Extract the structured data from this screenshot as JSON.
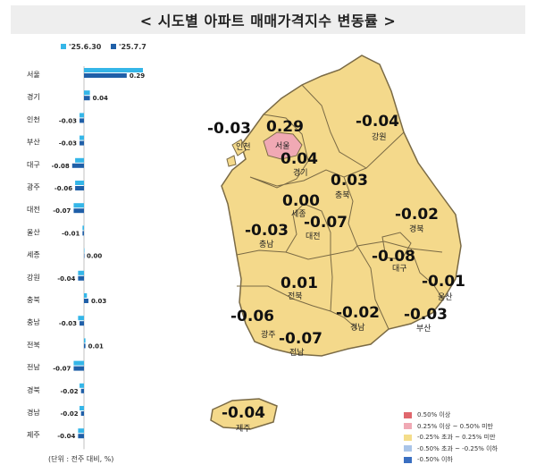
{
  "title": "< 시도별 아파트 매매가격지수 변동률 >",
  "unit_note": "(단위 : 전주 대비, %)",
  "legend_bar": [
    {
      "label": "'25.6.30",
      "color": "#35b6e8"
    },
    {
      "label": "'25.7.7",
      "color": "#1f5fa8"
    }
  ],
  "chart_data": {
    "type": "bar",
    "orientation": "horizontal",
    "categories": [
      "서울",
      "경기",
      "인천",
      "부산",
      "대구",
      "광주",
      "대전",
      "울산",
      "세종",
      "강원",
      "충북",
      "충남",
      "전북",
      "전남",
      "경북",
      "경남",
      "제주"
    ],
    "series": [
      {
        "name": "'25.6.30",
        "values": [
          0.4,
          0.04,
          -0.03,
          -0.03,
          -0.06,
          -0.06,
          -0.07,
          -0.01,
          0.0,
          -0.04,
          0.02,
          -0.04,
          0.01,
          -0.07,
          -0.03,
          -0.03,
          -0.04
        ]
      },
      {
        "name": "'25.7.7",
        "values": [
          0.29,
          0.04,
          -0.03,
          -0.03,
          -0.08,
          -0.06,
          -0.07,
          -0.01,
          0.0,
          -0.04,
          0.03,
          -0.03,
          0.01,
          -0.07,
          -0.02,
          -0.02,
          -0.04
        ]
      }
    ],
    "value_labels": [
      "0.29",
      "0.04",
      "-0.03",
      "-0.03",
      "-0.08",
      "-0.06",
      "-0.07",
      "-0.01",
      "0.00",
      "-0.04",
      "0.03",
      "-0.03",
      "0.01",
      "-0.07",
      "-0.02",
      "-0.02",
      "-0.04"
    ]
  },
  "map": {
    "regions": [
      {
        "name": "인천",
        "value": "-0.03"
      },
      {
        "name": "서울",
        "value": "0.29"
      },
      {
        "name": "경기",
        "value": "0.04"
      },
      {
        "name": "강원",
        "value": "-0.04"
      },
      {
        "name": "충북",
        "value": "0.03"
      },
      {
        "name": "세종",
        "value": "0.00"
      },
      {
        "name": "충남",
        "value": "-0.03"
      },
      {
        "name": "대전",
        "value": "-0.07"
      },
      {
        "name": "경북",
        "value": "-0.02"
      },
      {
        "name": "대구",
        "value": "-0.08"
      },
      {
        "name": "울산",
        "value": "-0.01"
      },
      {
        "name": "전북",
        "value": "0.01"
      },
      {
        "name": "경남",
        "value": "-0.02"
      },
      {
        "name": "부산",
        "value": "-0.03"
      },
      {
        "name": "광주",
        "value": "-0.06"
      },
      {
        "name": "전남",
        "value": "-0.07"
      },
      {
        "name": "제주",
        "value": "-0.04"
      }
    ]
  },
  "legend_map": [
    {
      "label": "0.50% 이상",
      "color": "#e0676d"
    },
    {
      "label": "0.25% 이상 ~ 0.50% 미만",
      "color": "#f0a9b4"
    },
    {
      "label": "-0.25% 초과 ~ 0.25% 미만",
      "color": "#f4dd8a"
    },
    {
      "label": "-0.50% 초과 ~ -0.25% 이하",
      "color": "#a9c4e8"
    },
    {
      "label": "-0.50% 이하",
      "color": "#3a6fc1"
    }
  ],
  "colors": {
    "map_fill": "#f4d98b",
    "seoul_fill": "#f0a9b4",
    "border": "#7a6a45"
  }
}
